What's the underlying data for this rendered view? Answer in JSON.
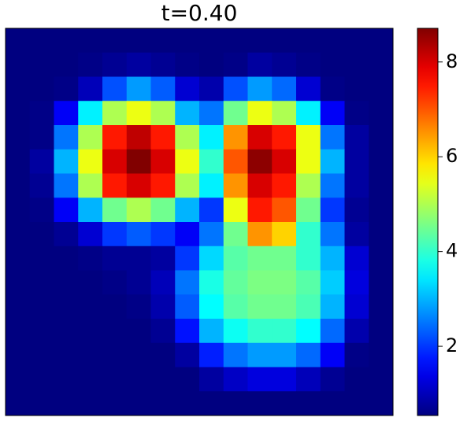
{
  "chart_data": {
    "type": "heatmap",
    "title": "t=0.40",
    "colormap": "jet",
    "zlim": [
      0.54,
      8.71
    ],
    "zticks": [
      2,
      4,
      6,
      8
    ],
    "z": [
      [
        0.54,
        0.54,
        0.54,
        0.54,
        0.54,
        0.54,
        0.54,
        0.54,
        0.54,
        0.54,
        0.54,
        0.54,
        0.54,
        0.54,
        0.54,
        0.54
      ],
      [
        0.54,
        0.54,
        0.54,
        0.6,
        0.7,
        0.8,
        0.7,
        0.6,
        0.54,
        0.6,
        0.8,
        0.7,
        0.6,
        0.54,
        0.54,
        0.54
      ],
      [
        0.54,
        0.54,
        0.6,
        1.0,
        2.2,
        2.8,
        2.3,
        1.2,
        0.9,
        2.2,
        2.8,
        2.4,
        1.2,
        0.6,
        0.54,
        0.54
      ],
      [
        0.54,
        0.6,
        1.5,
        3.5,
        5.0,
        5.5,
        5.0,
        3.0,
        2.5,
        4.5,
        5.5,
        5.0,
        3.5,
        1.5,
        0.6,
        0.54
      ],
      [
        0.54,
        0.6,
        2.5,
        5.0,
        7.5,
        8.2,
        7.5,
        5.0,
        3.5,
        6.5,
        8.0,
        7.5,
        5.5,
        2.5,
        0.8,
        0.54
      ],
      [
        0.54,
        0.8,
        3.0,
        5.5,
        8.0,
        8.7,
        8.0,
        5.5,
        4.0,
        7.0,
        8.6,
        8.0,
        5.5,
        3.0,
        0.8,
        0.54
      ],
      [
        0.54,
        0.7,
        2.5,
        5.0,
        7.5,
        8.0,
        7.5,
        5.0,
        3.5,
        6.5,
        8.0,
        7.5,
        5.0,
        2.5,
        0.8,
        0.54
      ],
      [
        0.54,
        0.6,
        1.5,
        3.0,
        4.5,
        5.0,
        4.5,
        3.0,
        2.0,
        5.5,
        7.5,
        7.0,
        4.5,
        2.0,
        0.7,
        0.54
      ],
      [
        0.54,
        0.54,
        0.7,
        1.2,
        2.0,
        2.3,
        2.0,
        1.5,
        2.5,
        4.5,
        6.5,
        6.0,
        4.0,
        2.5,
        0.8,
        0.54
      ],
      [
        0.54,
        0.54,
        0.54,
        0.6,
        0.7,
        0.7,
        0.8,
        2.0,
        3.3,
        4.3,
        4.5,
        4.5,
        4.0,
        3.0,
        1.2,
        0.54
      ],
      [
        0.54,
        0.54,
        0.54,
        0.54,
        0.6,
        0.7,
        1.0,
        2.5,
        3.8,
        4.4,
        4.6,
        4.6,
        4.3,
        3.2,
        1.3,
        0.54
      ],
      [
        0.54,
        0.54,
        0.54,
        0.54,
        0.54,
        0.6,
        0.9,
        2.3,
        3.6,
        4.3,
        4.5,
        4.5,
        4.2,
        3.0,
        1.2,
        0.54
      ],
      [
        0.54,
        0.54,
        0.54,
        0.54,
        0.54,
        0.54,
        0.7,
        1.7,
        3.0,
        3.7,
        4.0,
        4.0,
        3.6,
        2.4,
        0.9,
        0.54
      ],
      [
        0.54,
        0.54,
        0.54,
        0.54,
        0.54,
        0.54,
        0.54,
        0.8,
        1.8,
        2.5,
        2.8,
        2.8,
        2.4,
        1.5,
        0.6,
        0.54
      ],
      [
        0.54,
        0.54,
        0.54,
        0.54,
        0.54,
        0.54,
        0.54,
        0.54,
        0.8,
        1.1,
        1.3,
        1.3,
        1.0,
        0.7,
        0.54,
        0.54
      ],
      [
        0.54,
        0.54,
        0.54,
        0.54,
        0.54,
        0.54,
        0.54,
        0.54,
        0.54,
        0.54,
        0.54,
        0.54,
        0.54,
        0.54,
        0.54,
        0.54
      ]
    ]
  }
}
